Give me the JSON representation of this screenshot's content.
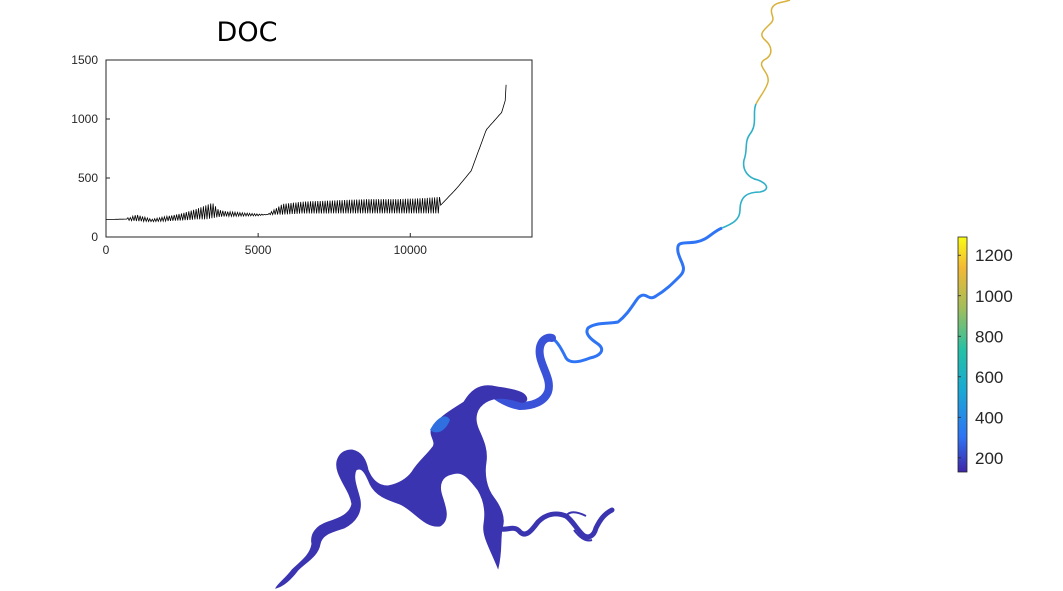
{
  "chart_data": [
    {
      "type": "line",
      "title": "DOC",
      "xlabel": "",
      "ylabel": "",
      "xlim": [
        0,
        14000
      ],
      "ylim": [
        0,
        1500
      ],
      "xticks": [
        "0",
        "5000",
        "10000"
      ],
      "yticks": [
        "0",
        "500",
        "1000",
        "1500"
      ],
      "grid": false,
      "series": [
        {
          "values_envelope": {
            "x": [
              0,
              800,
              1000,
              1500,
              2500,
              3000,
              3300,
              3500,
              3700,
              4000,
              5000,
              5300,
              5800,
              6500,
              7500,
              8500,
              9500,
              10500,
              11000,
              11500,
              12000,
              12500,
              13000,
              13150
            ],
            "upper": [
              148,
              165,
              190,
              150,
              200,
              240,
              270,
              290,
              230,
              215,
              195,
              190,
              280,
              300,
              310,
              320,
              320,
              330,
              340,
              410,
              570,
              920,
              1060,
              1290
            ],
            "lower": [
              148,
              140,
              135,
              130,
              140,
              150,
              150,
              160,
              170,
              175,
              180,
              190,
              190,
              200,
              200,
              200,
              200,
              200,
              200,
              400,
              550,
              900,
              1050,
              1070
            ]
          }
        }
      ]
    },
    {
      "type": "heatmap",
      "description_values": "river network colored by DOC",
      "colorbar": {
        "ticks": [
          "200",
          "400",
          "600",
          "800",
          "1000",
          "1200"
        ],
        "range": [
          130,
          1290
        ],
        "colormap": [
          "#3e26a8",
          "#2e74f4",
          "#19aad4",
          "#25c1a5",
          "#a3bd5a",
          "#f3b935",
          "#f9fb15"
        ]
      }
    }
  ]
}
